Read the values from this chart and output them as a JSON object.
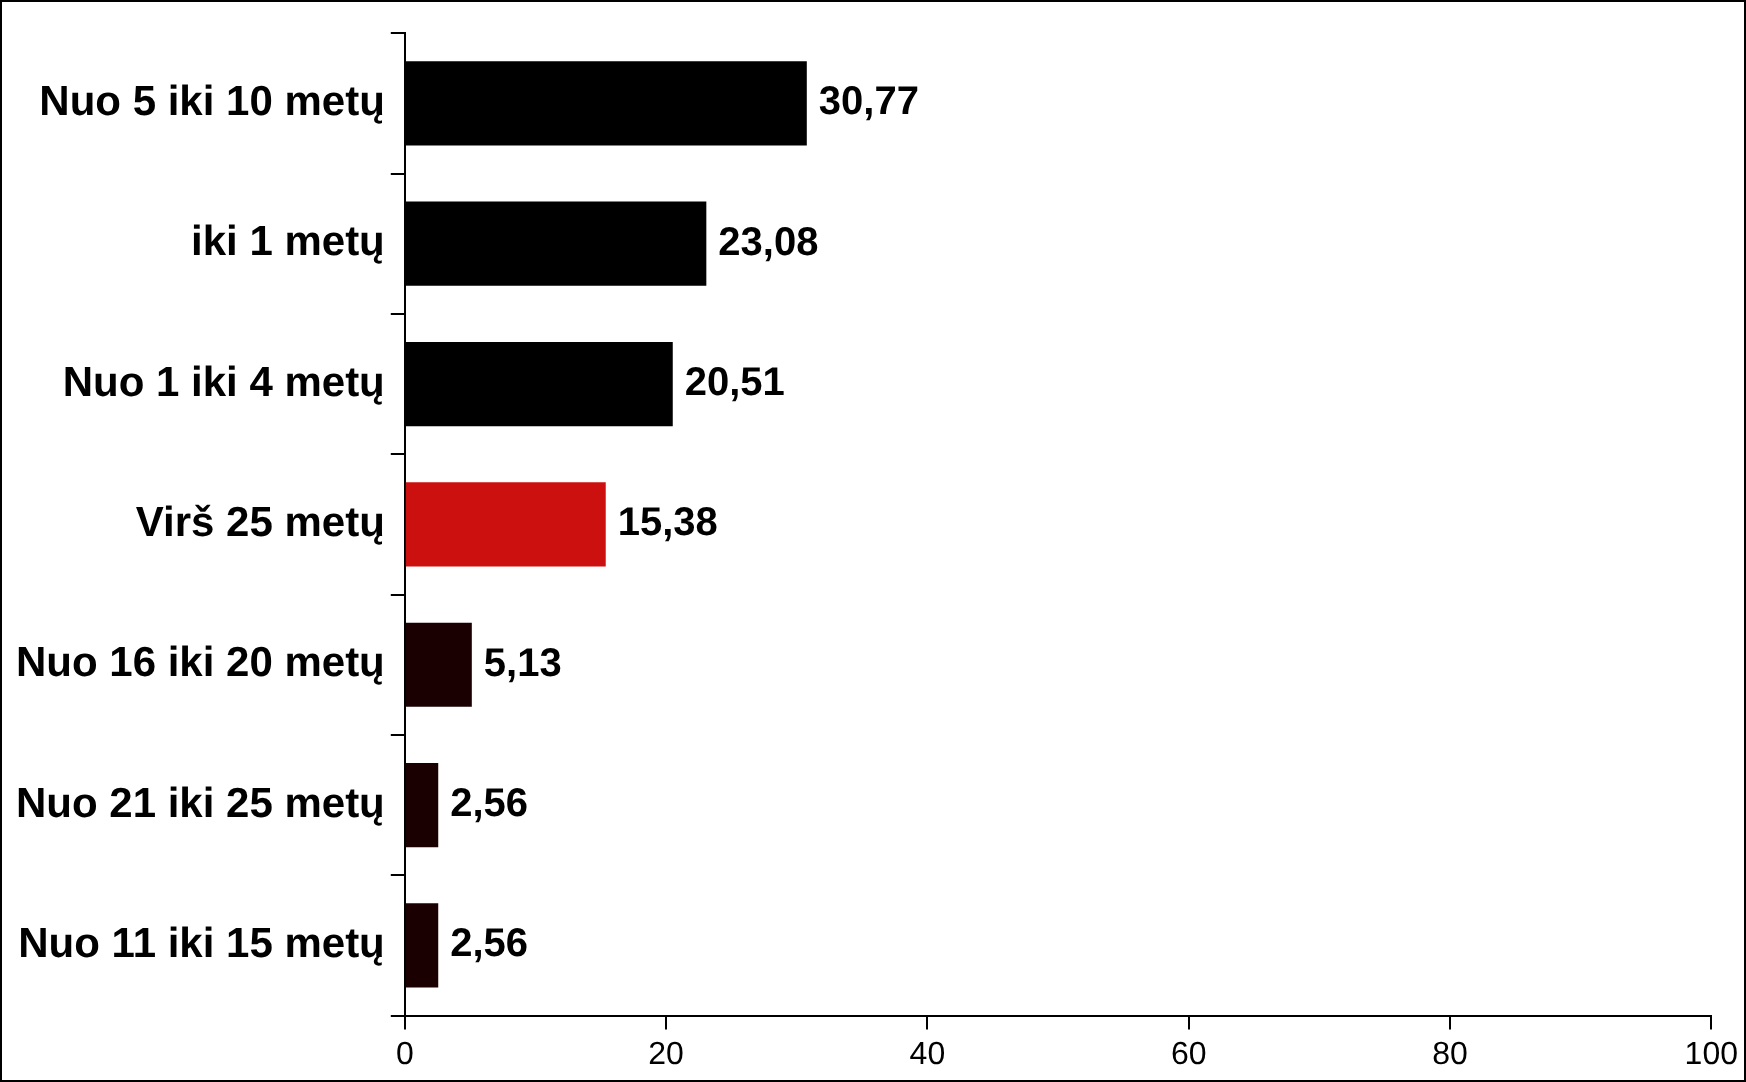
{
  "chart_data": {
    "type": "bar",
    "orientation": "horizontal",
    "categories": [
      "Nuo 5 iki 10 metų",
      "iki 1 metų",
      "Nuo 1 iki 4 metų",
      "Virš 25 metų",
      "Nuo 16 iki 20 metų",
      "Nuo 21 iki 25 metų",
      "Nuo 11 iki 15 metų"
    ],
    "values": [
      30.77,
      23.08,
      20.51,
      15.38,
      5.13,
      2.56,
      2.56
    ],
    "colors": [
      "#000000",
      "#000000",
      "#000000",
      "#cc1010",
      "#1a0000",
      "#1a0000",
      "#1a0000"
    ],
    "value_labels": [
      "30,77",
      "23,08",
      "20,51",
      "15,38",
      "5,13",
      "2,56",
      "2,56"
    ],
    "xlim": [
      0,
      100
    ],
    "xticks": [
      0,
      20,
      40,
      60,
      80,
      100
    ]
  }
}
